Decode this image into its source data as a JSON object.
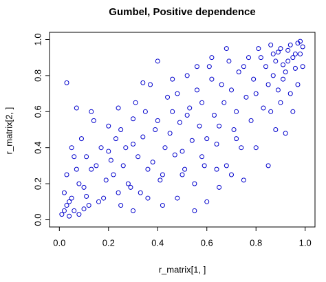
{
  "chart_data": {
    "type": "scatter",
    "title": "Gumbel, Positive dependence",
    "x_label": "r_matrix[1, ]",
    "y_label": "r_matrix[2, ]",
    "color": "#0000cc",
    "xlim": [
      -0.04,
      1.04
    ],
    "ylim": [
      -0.04,
      1.04
    ],
    "xticks": [
      {
        "value": 0,
        "label": "0.0"
      },
      0.2,
      0.4,
      0.6,
      0.8,
      {
        "value": 1,
        "label": "1.0"
      }
    ],
    "yticks": [
      {
        "value": 0,
        "label": "0.0"
      },
      0.2,
      0.4,
      0.6,
      0.8,
      {
        "value": 1,
        "label": "1.0"
      }
    ],
    "x": [
      0.02,
      0.05,
      0.08,
      0.03,
      0.1,
      0.12,
      0.06,
      0.15,
      0.04,
      0.09,
      0.18,
      0.2,
      0.22,
      0.25,
      0.14,
      0.28,
      0.3,
      0.07,
      0.33,
      0.35,
      0.38,
      0.4,
      0.42,
      0.45,
      0.48,
      0.5,
      0.52,
      0.55,
      0.58,
      0.6,
      0.62,
      0.65,
      0.68,
      0.7,
      0.72,
      0.75,
      0.78,
      0.8,
      0.82,
      0.85,
      0.88,
      0.9,
      0.92,
      0.94,
      0.96,
      0.98,
      0.99,
      0.97,
      0.95,
      0.93,
      0.91,
      0.89,
      0.87,
      0.86,
      0.84,
      0.83,
      0.81,
      0.79,
      0.77,
      0.76,
      0.74,
      0.73,
      0.71,
      0.69,
      0.67,
      0.66,
      0.64,
      0.63,
      0.61,
      0.59,
      0.57,
      0.56,
      0.54,
      0.53,
      0.51,
      0.49,
      0.47,
      0.46,
      0.44,
      0.43,
      0.41,
      0.39,
      0.37,
      0.36,
      0.34,
      0.32,
      0.31,
      0.29,
      0.27,
      0.26,
      0.24,
      0.23,
      0.21,
      0.19,
      0.17,
      0.16,
      0.13,
      0.11,
      0.1,
      0.08,
      0.03,
      0.01,
      0.02,
      0.06,
      0.04,
      0.07,
      0.11,
      0.13,
      0.03,
      0.05,
      0.2,
      0.24,
      0.3,
      0.34,
      0.4,
      0.46,
      0.52,
      0.56,
      0.62,
      0.68,
      0.6,
      0.65,
      0.7,
      0.75,
      0.8,
      0.85,
      0.88,
      0.9,
      0.92,
      0.95,
      0.97,
      0.99,
      0.98,
      0.96,
      0.94,
      0.93,
      0.91,
      0.89,
      0.87,
      0.86,
      0.55,
      0.48,
      0.42,
      0.36,
      0.3,
      0.25,
      0.5,
      0.58,
      0.64,
      0.72
    ],
    "y": [
      0.05,
      0.12,
      0.03,
      0.25,
      0.18,
      0.08,
      0.35,
      0.3,
      0.02,
      0.45,
      0.12,
      0.38,
      0.25,
      0.5,
      0.55,
      0.2,
      0.42,
      0.62,
      0.15,
      0.6,
      0.32,
      0.55,
      0.25,
      0.48,
      0.7,
      0.38,
      0.58,
      0.2,
      0.65,
      0.45,
      0.78,
      0.52,
      0.3,
      0.72,
      0.6,
      0.85,
      0.55,
      0.7,
      0.9,
      0.75,
      0.88,
      0.95,
      0.82,
      0.97,
      0.92,
      0.99,
      0.96,
      0.98,
      0.9,
      0.94,
      0.86,
      0.93,
      0.8,
      0.97,
      0.85,
      0.62,
      0.95,
      0.78,
      0.9,
      0.68,
      0.4,
      0.82,
      0.5,
      0.88,
      0.65,
      0.75,
      0.42,
      0.58,
      0.85,
      0.3,
      0.52,
      0.72,
      0.44,
      0.62,
      0.28,
      0.54,
      0.36,
      0.6,
      0.68,
      0.4,
      0.22,
      0.5,
      0.75,
      0.28,
      0.46,
      0.35,
      0.65,
      0.18,
      0.4,
      0.3,
      0.15,
      0.45,
      0.33,
      0.22,
      0.4,
      0.1,
      0.28,
      0.35,
      0.06,
      0.2,
      0.08,
      0.03,
      0.15,
      0.05,
      0.1,
      0.28,
      0.13,
      0.6,
      0.76,
      0.4,
      0.52,
      0.62,
      0.56,
      0.76,
      0.88,
      0.78,
      0.8,
      0.85,
      0.9,
      0.95,
      0.1,
      0.18,
      0.25,
      0.22,
      0.4,
      0.3,
      0.5,
      0.65,
      0.48,
      0.6,
      0.75,
      0.85,
      0.92,
      0.84,
      0.7,
      0.88,
      0.78,
      0.72,
      0.92,
      0.6,
      0.05,
      0.12,
      0.08,
      0.12,
      0.05,
      0.08,
      0.25,
      0.35,
      0.28,
      0.45
    ]
  }
}
